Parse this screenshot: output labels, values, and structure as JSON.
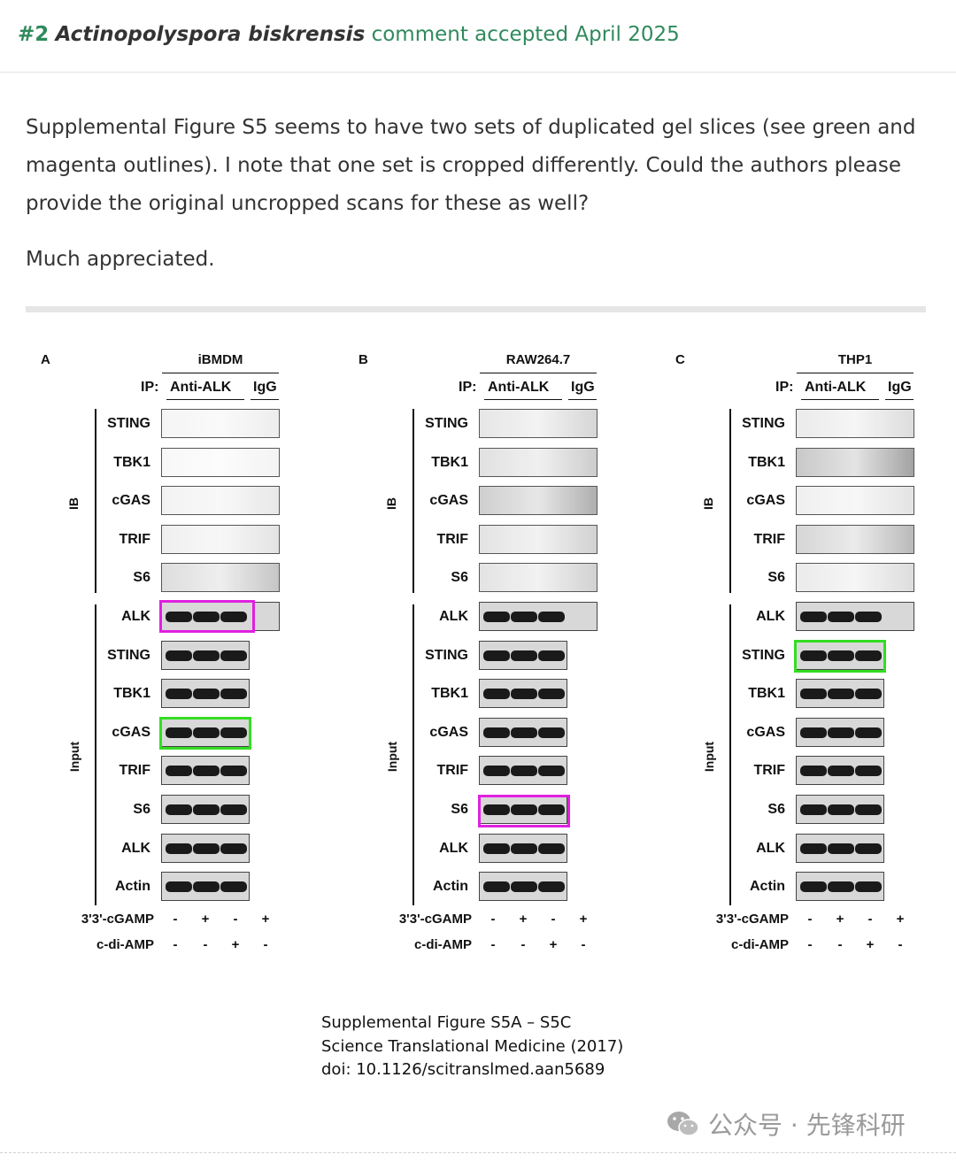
{
  "header": {
    "number": "#2",
    "species": "Actinopolyspora biskrensis",
    "status": "comment accepted April 2025"
  },
  "comment": {
    "paragraph": "Supplemental Figure S5 seems to have two sets of duplicated gel slices (see green and magenta outlines). I note that one set is cropped differently. Could the authors please provide the original uncropped scans for these as well?",
    "sign_off": "Much appreciated."
  },
  "figure": {
    "ip_label": "IP:",
    "ip_anti": "Anti-ALK",
    "ip_igg": "IgG",
    "ib_label": "IB",
    "input_label": "Input",
    "treatments": [
      {
        "label": "3'3'-cGAMP",
        "values": [
          "-",
          "+",
          "-",
          "+"
        ]
      },
      {
        "label": "c-di-AMP",
        "values": [
          "-",
          "-",
          "+",
          "-"
        ]
      }
    ],
    "panels": [
      {
        "letter": "A",
        "cell_line": "iBMDM",
        "ib_proteins": [
          "STING",
          "TBK1",
          "cGAS",
          "TRIF",
          "S6"
        ],
        "input_proteins": [
          "ALK",
          "STING",
          "TBK1",
          "cGAS",
          "TRIF",
          "S6",
          "ALK",
          "Actin"
        ]
      },
      {
        "letter": "B",
        "cell_line": "RAW264.7",
        "ib_proteins": [
          "STING",
          "TBK1",
          "cGAS",
          "TRIF",
          "S6"
        ],
        "input_proteins": [
          "ALK",
          "STING",
          "TBK1",
          "cGAS",
          "TRIF",
          "S6",
          "ALK",
          "Actin"
        ]
      },
      {
        "letter": "C",
        "cell_line": "THP1",
        "ib_proteins": [
          "STING",
          "TBK1",
          "cGAS",
          "TRIF",
          "S6"
        ],
        "input_proteins": [
          "ALK",
          "STING",
          "TBK1",
          "cGAS",
          "TRIF",
          "S6",
          "ALK",
          "Actin"
        ]
      }
    ],
    "highlight_colors": {
      "green": "#33dd22",
      "magenta": "#e020e0"
    }
  },
  "caption": {
    "line1": "Supplemental Figure S5A – S5C",
    "line2": "Science Translational Medicine (2017)",
    "line3": "doi: 10.1126/scitranslmed.aan5689"
  },
  "watermark": {
    "icon": "wechat-icon",
    "text": "公众号 · 先锋科研"
  }
}
